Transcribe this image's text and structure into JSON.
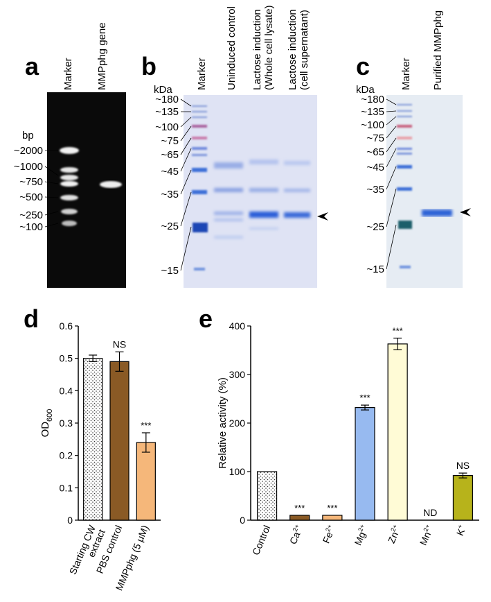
{
  "figure": {
    "panels": {
      "a": {
        "label": "a",
        "lane_labels": [
          "Marker",
          "MMPphg gene"
        ],
        "unit": "bp",
        "markers": [
          "~2000",
          "~1000",
          "~750",
          "~500",
          "~250",
          "~100"
        ]
      },
      "b": {
        "label": "b",
        "lane_labels": [
          "Marker",
          "Uninduced control",
          "Lactose induction",
          "(Whole cell lysate)",
          "Lactose induction",
          "(cell supernatant)"
        ],
        "unit": "kDa",
        "markers": [
          "~180",
          "~135",
          "~100",
          "~75",
          "~65",
          "~45",
          "~35",
          "~25",
          "~15"
        ]
      },
      "c": {
        "label": "c",
        "lane_labels": [
          "Marker",
          "Purified MMPphg"
        ],
        "unit": "kDa",
        "markers": [
          "~180",
          "~135",
          "~100",
          "~75",
          "~65",
          "~45",
          "~35",
          "~25",
          "~15"
        ]
      },
      "d": {
        "label": "d"
      },
      "e": {
        "label": "e"
      }
    },
    "colors": {
      "gel_dark": "#0a0a0a",
      "sds_bg": "#dfe3f4",
      "sds_bg_c": "#e6ecf3",
      "band_blue": "#2f63d6"
    }
  },
  "chart_data": [
    {
      "type": "bar",
      "panel": "d",
      "categories": [
        "Starting CW extract",
        "PBS control",
        "MMPphg (5 μM)"
      ],
      "category_lines": [
        [
          "Starting CW",
          "extract"
        ],
        [
          "PBS control"
        ],
        [
          "MMPphg (5 μM)"
        ]
      ],
      "values": [
        0.5,
        0.49,
        0.24
      ],
      "errors": [
        0.01,
        0.03,
        0.03
      ],
      "annotations": [
        "",
        "NS",
        "***"
      ],
      "colors": [
        "#ffffff",
        "#8a5a25",
        "#f5b77a"
      ],
      "patterns": [
        "dots",
        "none",
        "none"
      ],
      "ylabel": "OD",
      "ylabel_sub": "600",
      "ylim": [
        0,
        0.6
      ],
      "yticks": [
        "0",
        "0.1",
        "0.2",
        "0.3",
        "0.4",
        "0.5",
        "0.6"
      ]
    },
    {
      "type": "bar",
      "panel": "e",
      "categories": [
        "Control",
        "Ca2+",
        "Fe2+",
        "Mg2+",
        "Zn2+",
        "Mn2+",
        "K+"
      ],
      "category_base": [
        "Control",
        "Ca",
        "Fe",
        "Mg",
        "Zn",
        "Mn",
        "K"
      ],
      "category_sup": [
        "",
        "2+",
        "2+",
        "2+",
        "2+",
        "2+",
        "+"
      ],
      "values": [
        100,
        10,
        10,
        232,
        363,
        0,
        92
      ],
      "errors": [
        0,
        0,
        0,
        5,
        12,
        0,
        5
      ],
      "annotations": [
        "",
        "***",
        "***",
        "***",
        "***",
        "ND",
        "NS"
      ],
      "colors": [
        "#ffffff",
        "#8a5a25",
        "#f5b77a",
        "#97baf0",
        "#fffbd6",
        "#ffffff",
        "#b7b31b"
      ],
      "patterns": [
        "dots",
        "none",
        "none",
        "none",
        "none",
        "none",
        "none"
      ],
      "ylabel": "Relative activity (%)",
      "ylim": [
        0,
        400
      ],
      "yticks": [
        "0",
        "100",
        "200",
        "300",
        "400"
      ]
    }
  ]
}
